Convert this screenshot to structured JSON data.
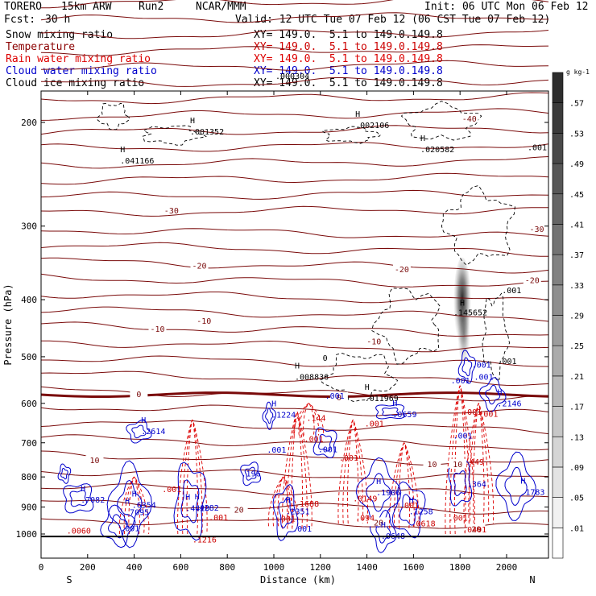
{
  "header": {
    "model": "TORERO",
    "resolution": "15km ARW",
    "run": "Run2",
    "org": "NCAR/MMM",
    "init": "Init: 06 UTC Mon 06 Feb 12",
    "fcst": "Fcst:",
    "fcst_value": "30 h",
    "valid": "Valid: 12 UTC Tue 07 Feb 12 (06 CST Tue 07 Feb 12)"
  },
  "fields": [
    {
      "name": "Snow mixing ratio",
      "color": "#000000",
      "xy": "XY= 149.0.  5.1 to 149.0.149.8",
      "xy_color": "#000000"
    },
    {
      "name": "Temperature",
      "color": "#8b0000",
      "xy": "XY= 149.0.  5.1 to 149.0.149.8",
      "xy_color": "#cc0000"
    },
    {
      "name": "Rain water mixing ratio",
      "color": "#dd0000",
      "xy": "XY= 149.0.  5.1 to 149.0.149.8",
      "xy_color": "#dd0000"
    },
    {
      "name": "Cloud water mixing ratio",
      "color": "#0000cc",
      "xy": "XY= 149.0.  5.1 to 149.0.149.8",
      "xy_color": "#0000cc"
    },
    {
      "name": "Cloud ice mixing ratio",
      "color": "#000000",
      "xy": "XY= 149.0.  5.1 to 149.0.149.8",
      "xy_color": "#000000"
    }
  ],
  "overlap_label": ".000304",
  "chart_data": {
    "type": "contour",
    "xlabel": "Distance (km)",
    "ylabel": "Pressure (hPa)",
    "x_ticks": [
      0,
      200,
      400,
      600,
      800,
      1000,
      1200,
      1400,
      1600,
      1800,
      2000
    ],
    "y_ticks": [
      200,
      300,
      400,
      500,
      600,
      700,
      800,
      900,
      1000
    ],
    "xlim": [
      0,
      2180
    ],
    "ylim_pressure": [
      1050,
      100
    ],
    "y_scale": "log",
    "left_end_label": "S",
    "right_end_label": "N",
    "colorbar": {
      "units": "g kg-1",
      "ticks": [
        ".01",
        ".05",
        ".09",
        ".13",
        ".17",
        ".21",
        ".25",
        ".29",
        ".33",
        ".37",
        ".41",
        ".45",
        ".49",
        ".53",
        ".57"
      ]
    },
    "temperature_contour_labels": [
      {
        "text": "-40",
        "x": 1840,
        "p": 197
      },
      {
        "text": "-30",
        "x": 560,
        "p": 282
      },
      {
        "text": "-30",
        "x": 2130,
        "p": 303
      },
      {
        "text": "-20",
        "x": 680,
        "p": 350
      },
      {
        "text": "-20",
        "x": 1550,
        "p": 355
      },
      {
        "text": "-20",
        "x": 2110,
        "p": 370
      },
      {
        "text": "-10",
        "x": 500,
        "p": 448
      },
      {
        "text": "-10",
        "x": 700,
        "p": 434
      },
      {
        "text": "-10",
        "x": 1430,
        "p": 470
      },
      {
        "text": "0",
        "x": 420,
        "p": 578
      },
      {
        "text": "0",
        "x": 1280,
        "p": 585
      },
      {
        "text": "10",
        "x": 230,
        "p": 749
      },
      {
        "text": "10",
        "x": 1680,
        "p": 760
      },
      {
        "text": "10",
        "x": 1790,
        "p": 760
      },
      {
        "text": "20",
        "x": 850,
        "p": 908
      },
      {
        "text": "20",
        "x": 1450,
        "p": 955
      },
      {
        "text": "20",
        "x": 1870,
        "p": 980
      }
    ],
    "snow_maxima": [
      {
        "text": ".001352",
        "x": 640,
        "p": 207
      },
      {
        "text": ".002106",
        "x": 1350,
        "p": 202
      },
      {
        "text": ".041166",
        "x": 340,
        "p": 232
      },
      {
        "text": ".020582",
        "x": 1630,
        "p": 222
      },
      {
        "text": ".008836",
        "x": 1090,
        "p": 540
      },
      {
        "text": ".011969",
        "x": 1390,
        "p": 587
      },
      {
        "text": ".001",
        "x": 2090,
        "p": 220
      },
      {
        "text": ".001",
        "x": 1980,
        "p": 385
      },
      {
        "text": ".001",
        "x": 1960,
        "p": 508
      },
      {
        "text": "0",
        "x": 1210,
        "p": 502
      }
    ],
    "ice_maxima": [
      {
        "text": ".145652",
        "x": 1820,
        "p": 420
      }
    ],
    "rain_maxima": [
      {
        "text": ".144",
        "x": 1140,
        "p": 634
      },
      {
        "text": ".001",
        "x": 1130,
        "p": 689
      },
      {
        "text": ".001",
        "x": 1390,
        "p": 649
      },
      {
        "text": ".001",
        "x": 1280,
        "p": 741
      },
      {
        "text": ".001",
        "x": 1880,
        "p": 624
      },
      {
        "text": ".001",
        "x": 520,
        "p": 838
      },
      {
        "text": ".001",
        "x": 720,
        "p": 936
      },
      {
        "text": ".001",
        "x": 1540,
        "p": 893
      },
      {
        "text": ".001",
        "x": 1750,
        "p": 938
      },
      {
        "text": ".1216",
        "x": 650,
        "p": 1021
      },
      {
        "text": ".1688",
        "x": 1090,
        "p": 887
      },
      {
        "text": ".0149",
        "x": 1340,
        "p": 869
      },
      {
        "text": ".0618",
        "x": 1590,
        "p": 958
      },
      {
        "text": ".0401",
        "x": 1810,
        "p": 981
      },
      {
        "text": ".094",
        "x": 1350,
        "p": 938
      },
      {
        "text": ".0060",
        "x": 110,
        "p": 986
      },
      {
        "text": ".449",
        "x": 1820,
        "p": 753
      },
      {
        "text": ".001",
        "x": 1010,
        "p": 940
      },
      {
        "text": ".001",
        "x": 1810,
        "p": 620
      }
    ],
    "cloud_water_maxima": [
      {
        "text": ".1224",
        "x": 990,
        "p": 626
      },
      {
        "text": ".2614",
        "x": 430,
        "p": 668
      },
      {
        "text": ".001",
        "x": 970,
        "p": 718
      },
      {
        "text": ".001",
        "x": 1190,
        "p": 717
      },
      {
        "text": ".001",
        "x": 1220,
        "p": 582
      },
      {
        "text": ".0659",
        "x": 1510,
        "p": 625
      },
      {
        "text": ".196",
        "x": 860,
        "p": 788
      },
      {
        "text": ".7082",
        "x": 170,
        "p": 874
      },
      {
        "text": ".6354",
        "x": 390,
        "p": 892
      },
      {
        "text": ".7095",
        "x": 360,
        "p": 917
      },
      {
        "text": ".4420",
        "x": 620,
        "p": 903
      },
      {
        "text": ".4282",
        "x": 660,
        "p": 901
      },
      {
        "text": ".2351",
        "x": 1050,
        "p": 914
      },
      {
        "text": ".1906",
        "x": 1440,
        "p": 849
      },
      {
        "text": ".1258",
        "x": 1580,
        "p": 914
      },
      {
        "text": ".0648",
        "x": 1460,
        "p": 1006
      },
      {
        "text": ".001",
        "x": 1080,
        "p": 978
      },
      {
        "text": ".001",
        "x": 340,
        "p": 976
      },
      {
        "text": ".001",
        "x": 1850,
        "p": 515
      },
      {
        "text": ".2146",
        "x": 1960,
        "p": 599
      },
      {
        "text": ".1783",
        "x": 2060,
        "p": 847
      },
      {
        "text": ".364",
        "x": 1830,
        "p": 821
      },
      {
        "text": ".001",
        "x": 1860,
        "p": 540
      },
      {
        "text": ".001",
        "x": 1760,
        "p": 548
      },
      {
        "text": ".001",
        "x": 1770,
        "p": 680
      }
    ],
    "freezing_level_hPa": 580
  }
}
